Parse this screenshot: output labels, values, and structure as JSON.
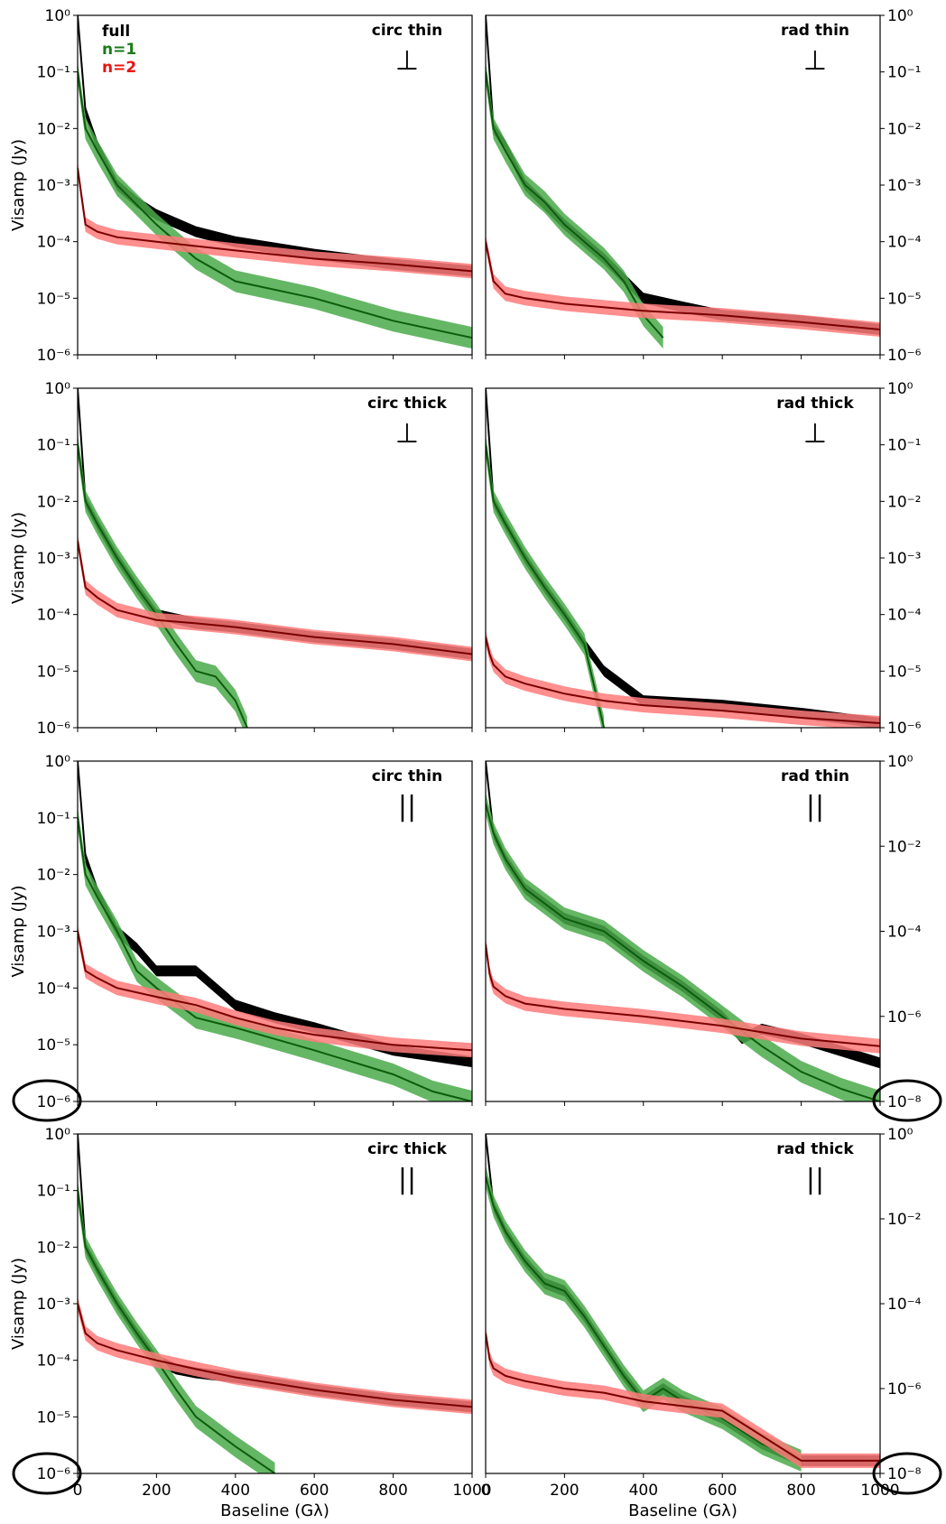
{
  "legend": [
    {
      "label": "full",
      "color": "#000000"
    },
    {
      "label": "n=1",
      "color": "#1a7a1a"
    },
    {
      "label": "n=2",
      "color": "#e8140f"
    }
  ],
  "colors": {
    "full": "#000000",
    "n1": "#4aaa4a",
    "n1_dark": "#0d5c0d",
    "n2": "#ff7a7a",
    "n2_dark": "#7a0000"
  },
  "axes_text": {
    "ylabel": "Visamp (Jy)",
    "xlabel": "Baseline (Gλ)",
    "x_ticks": [
      "0",
      "200",
      "400",
      "600",
      "800",
      "1000"
    ],
    "y_ticks_6dec": [
      "10⁻⁶",
      "10⁻⁵",
      "10⁻⁴",
      "10⁻³",
      "10⁻²",
      "10⁻¹",
      "10⁰"
    ],
    "y_ticks_8dec": [
      "10⁻⁸",
      "10⁻⁶",
      "10⁻⁴",
      "10⁻²",
      "10⁰"
    ]
  },
  "orient_symbols": {
    "perp": "⊥",
    "par": "||"
  },
  "chart_data": [
    {
      "type": "line",
      "panel": "circ thin",
      "symbol": "perp",
      "xlim": [
        0,
        1000
      ],
      "ylim_log10": [
        -6,
        0
      ],
      "yscale": "log",
      "series": [
        {
          "name": "full",
          "x": [
            0,
            20,
            50,
            100,
            150,
            200,
            300,
            400,
            600,
            800,
            1000
          ],
          "y": [
            1,
            0.02,
            0.005,
            0.001,
            0.0005,
            0.0003,
            0.00015,
            0.0001,
            6e-05,
            4e-05,
            3e-05
          ]
        },
        {
          "name": "n=1",
          "x": [
            0,
            20,
            50,
            100,
            200,
            300,
            400,
            600,
            800,
            1000
          ],
          "y": [
            0.1,
            0.01,
            0.004,
            0.001,
            0.0002,
            5e-05,
            2e-05,
            1e-05,
            4e-06,
            2e-06
          ]
        },
        {
          "name": "n=2",
          "x": [
            0,
            20,
            50,
            100,
            200,
            400,
            600,
            800,
            1000
          ],
          "y": [
            0.002,
            0.0002,
            0.00015,
            0.00012,
            0.0001,
            7e-05,
            5e-05,
            4e-05,
            3e-05
          ]
        }
      ]
    },
    {
      "type": "line",
      "panel": "rad thin",
      "symbol": "perp",
      "xlim": [
        0,
        1000
      ],
      "ylim_log10": [
        -6,
        0
      ],
      "yscale": "log",
      "series": [
        {
          "name": "full",
          "x": [
            0,
            20,
            50,
            100,
            200,
            300,
            400,
            500,
            600,
            800,
            1000
          ],
          "y": [
            1,
            0.01,
            0.005,
            0.001,
            0.0002,
            5e-05,
            1e-05,
            7e-06,
            5e-06,
            4e-06,
            2.8e-06
          ]
        },
        {
          "name": "n=1",
          "x": [
            0,
            20,
            50,
            100,
            150,
            200,
            250,
            300,
            350,
            400,
            450
          ],
          "y": [
            0.1,
            0.01,
            0.004,
            0.001,
            0.0005,
            0.0002,
            0.0001,
            5e-05,
            2e-05,
            5e-06,
            2e-06
          ]
        },
        {
          "name": "n=2",
          "x": [
            0,
            20,
            50,
            100,
            200,
            400,
            600,
            800,
            1000
          ],
          "y": [
            0.0001,
            2e-05,
            1.2e-05,
            1e-05,
            8e-06,
            6e-06,
            5e-06,
            3.8e-06,
            2.8e-06
          ]
        }
      ]
    },
    {
      "type": "line",
      "panel": "circ thick",
      "symbol": "perp",
      "xlim": [
        0,
        1000
      ],
      "ylim_log10": [
        -6,
        0
      ],
      "yscale": "log",
      "series": [
        {
          "name": "full",
          "x": [
            0,
            20,
            50,
            100,
            150,
            200,
            300,
            400,
            600,
            800,
            1000
          ],
          "y": [
            1,
            0.01,
            0.004,
            0.001,
            0.0003,
            0.0001,
            7e-05,
            6e-05,
            4e-05,
            3e-05,
            2e-05
          ]
        },
        {
          "name": "n=1",
          "x": [
            0,
            20,
            50,
            100,
            150,
            200,
            250,
            300,
            350,
            400,
            430
          ],
          "y": [
            0.1,
            0.01,
            0.004,
            0.001,
            0.0003,
            0.0001,
            3e-05,
            1e-05,
            8e-06,
            3e-06,
            1e-06
          ]
        },
        {
          "name": "n=2",
          "x": [
            0,
            20,
            50,
            100,
            200,
            300,
            400,
            600,
            800,
            1000
          ],
          "y": [
            0.002,
            0.0003,
            0.0002,
            0.00012,
            8e-05,
            7e-05,
            6e-05,
            4e-05,
            3e-05,
            2e-05
          ]
        }
      ]
    },
    {
      "type": "line",
      "panel": "rad thick",
      "symbol": "perp",
      "xlim": [
        0,
        1000
      ],
      "ylim_log10": [
        -6,
        0
      ],
      "yscale": "log",
      "series": [
        {
          "name": "full",
          "x": [
            0,
            20,
            50,
            100,
            150,
            200,
            250,
            300,
            400,
            600,
            800,
            1000
          ],
          "y": [
            1,
            0.01,
            0.004,
            0.001,
            0.0003,
            0.0001,
            3e-05,
            1e-05,
            3e-06,
            2.5e-06,
            1.8e-06,
            1.2e-06
          ]
        },
        {
          "name": "n=1",
          "x": [
            0,
            20,
            50,
            100,
            150,
            200,
            250,
            300
          ],
          "y": [
            0.1,
            0.01,
            0.004,
            0.001,
            0.0003,
            0.0001,
            3e-05,
            1e-06
          ]
        },
        {
          "name": "n=2",
          "x": [
            0,
            10,
            20,
            50,
            100,
            200,
            300,
            400,
            600,
            800,
            1000
          ],
          "y": [
            4e-05,
            2e-05,
            1.3e-05,
            8e-06,
            6e-06,
            4e-06,
            3e-06,
            2.5e-06,
            2e-06,
            1.5e-06,
            1.2e-06
          ]
        }
      ]
    },
    {
      "type": "line",
      "panel": "circ thin",
      "symbol": "par",
      "xlim": [
        0,
        1000
      ],
      "ylim_log10": [
        -6,
        0
      ],
      "yscale": "log",
      "series": [
        {
          "name": "full",
          "x": [
            0,
            20,
            50,
            100,
            150,
            200,
            300,
            400,
            500,
            600,
            800,
            1000
          ],
          "y": [
            1,
            0.02,
            0.005,
            0.001,
            0.0005,
            0.0002,
            0.0002,
            5e-05,
            3e-05,
            2e-05,
            8e-06,
            5e-06
          ]
        },
        {
          "name": "n=1",
          "x": [
            0,
            20,
            50,
            100,
            150,
            200,
            300,
            400,
            600,
            800,
            900,
            1000
          ],
          "y": [
            0.1,
            0.01,
            0.004,
            0.001,
            0.0002,
            0.0001,
            3e-05,
            2e-05,
            8e-06,
            3e-06,
            1.5e-06,
            1e-06
          ]
        },
        {
          "name": "n=2",
          "x": [
            0,
            20,
            50,
            100,
            200,
            300,
            400,
            500,
            600,
            800,
            1000
          ],
          "y": [
            0.001,
            0.0002,
            0.00015,
            0.0001,
            7e-05,
            5e-05,
            3e-05,
            2e-05,
            1.5e-05,
            1e-05,
            8e-06
          ]
        }
      ]
    },
    {
      "type": "line",
      "panel": "rad thin",
      "symbol": "par",
      "xlim": [
        0,
        1000
      ],
      "ylim_log10": [
        -8,
        0
      ],
      "yscale": "log",
      "series": [
        {
          "name": "full",
          "x": [
            0,
            20,
            50,
            100,
            200,
            300,
            400,
            500,
            600,
            650,
            700,
            800,
            1000
          ],
          "y": [
            1,
            0.02,
            0.005,
            0.001,
            0.0002,
            0.0001,
            2e-05,
            5e-06,
            1e-06,
            3e-07,
            5e-07,
            3e-07,
            8e-08
          ]
        },
        {
          "name": "n=1",
          "x": [
            0,
            20,
            50,
            100,
            200,
            300,
            400,
            500,
            600,
            700,
            800,
            900,
            1000
          ],
          "y": [
            0.1,
            0.02,
            0.005,
            0.001,
            0.0002,
            0.0001,
            2e-05,
            5e-06,
            1e-06,
            2e-07,
            5e-08,
            2e-08,
            1e-08
          ]
        },
        {
          "name": "n=2",
          "x": [
            0,
            10,
            20,
            50,
            100,
            200,
            400,
            600,
            800,
            1000
          ],
          "y": [
            5e-05,
            1e-05,
            5e-06,
            3e-06,
            2e-06,
            1.5e-06,
            1e-06,
            6e-07,
            3e-07,
            2e-07
          ]
        }
      ]
    },
    {
      "type": "line",
      "panel": "circ thick",
      "symbol": "par",
      "xlim": [
        0,
        1000
      ],
      "ylim_log10": [
        -6,
        0
      ],
      "yscale": "log",
      "series": [
        {
          "name": "full",
          "x": [
            0,
            20,
            50,
            100,
            150,
            200,
            250,
            300,
            400,
            600,
            800,
            1000
          ],
          "y": [
            1,
            0.01,
            0.004,
            0.001,
            0.0003,
            0.0001,
            7e-05,
            6e-05,
            5e-05,
            3e-05,
            2e-05,
            1.5e-05
          ]
        },
        {
          "name": "n=1",
          "x": [
            0,
            20,
            50,
            100,
            150,
            200,
            250,
            300,
            400,
            500
          ],
          "y": [
            0.1,
            0.01,
            0.004,
            0.001,
            0.0003,
            0.0001,
            3e-05,
            1e-05,
            3e-06,
            1e-06
          ]
        },
        {
          "name": "n=2",
          "x": [
            0,
            20,
            50,
            100,
            200,
            300,
            400,
            600,
            800,
            1000
          ],
          "y": [
            0.001,
            0.0003,
            0.0002,
            0.00015,
            0.0001,
            7e-05,
            5e-05,
            3e-05,
            2e-05,
            1.5e-05
          ]
        }
      ]
    },
    {
      "type": "line",
      "panel": "rad thick",
      "symbol": "par",
      "xlim": [
        0,
        1000
      ],
      "ylim_log10": [
        -8,
        0
      ],
      "yscale": "log",
      "series": [
        {
          "name": "full",
          "x": [
            0,
            20,
            50,
            100,
            150,
            200,
            250,
            300,
            350,
            400,
            450,
            500,
            600,
            700,
            800,
            1000
          ],
          "y": [
            1,
            0.02,
            0.005,
            0.001,
            0.0003,
            0.0002,
            5e-05,
            1e-05,
            2e-06,
            5e-07,
            1e-06,
            5e-07,
            2e-07,
            5e-08,
            2e-08,
            2e-08
          ]
        },
        {
          "name": "n=1",
          "x": [
            0,
            20,
            50,
            100,
            150,
            200,
            250,
            300,
            350,
            400,
            450,
            500,
            600,
            700,
            800
          ],
          "y": [
            0.1,
            0.02,
            0.005,
            0.001,
            0.0003,
            0.0002,
            5e-05,
            1e-05,
            2e-06,
            5e-07,
            1e-06,
            5e-07,
            2e-07,
            5e-08,
            2e-08
          ]
        },
        {
          "name": "n=2",
          "x": [
            0,
            10,
            20,
            50,
            100,
            200,
            300,
            400,
            600,
            800,
            1000
          ],
          "y": [
            2e-05,
            5e-06,
            3e-06,
            2e-06,
            1.5e-06,
            1e-06,
            8e-07,
            5e-07,
            3e-07,
            2e-08,
            2e-08
          ]
        }
      ]
    }
  ]
}
